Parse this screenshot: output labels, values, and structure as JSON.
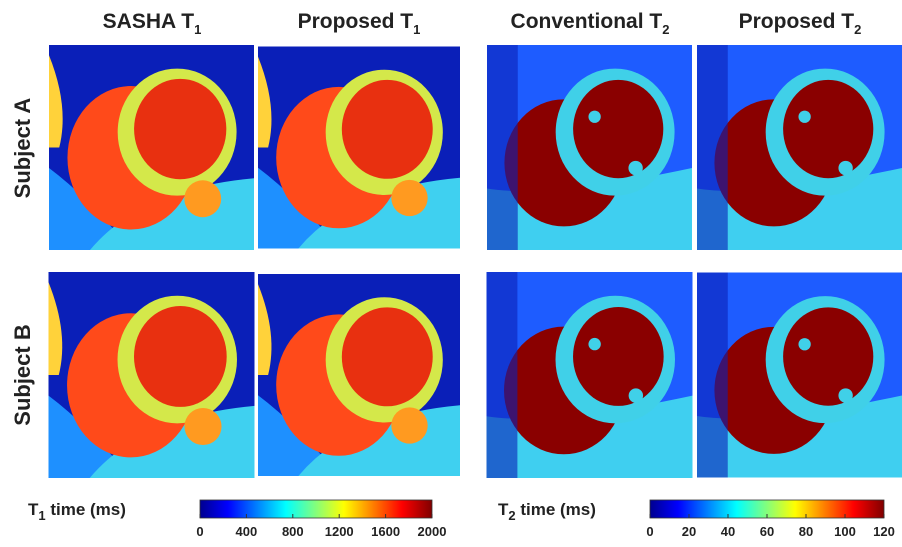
{
  "columns": [
    {
      "text": "SASHA T",
      "sub": "1"
    },
    {
      "text": "Proposed T",
      "sub": "1"
    },
    {
      "text": "Conventional T",
      "sub": "2"
    },
    {
      "text": "Proposed T",
      "sub": "2"
    }
  ],
  "rows": [
    "Subject A",
    "Subject B"
  ],
  "colorbars": [
    {
      "label": "T",
      "sub": "1",
      "label_rest": " time (ms)",
      "lim": [
        0,
        2000
      ],
      "ticks": [
        0,
        400,
        800,
        1200,
        1600,
        2000
      ]
    },
    {
      "label": "T",
      "sub": "2",
      "label_rest": " time (ms)",
      "lim": [
        0,
        120
      ],
      "ticks": [
        0,
        20,
        40,
        60,
        80,
        100,
        120
      ]
    }
  ]
}
